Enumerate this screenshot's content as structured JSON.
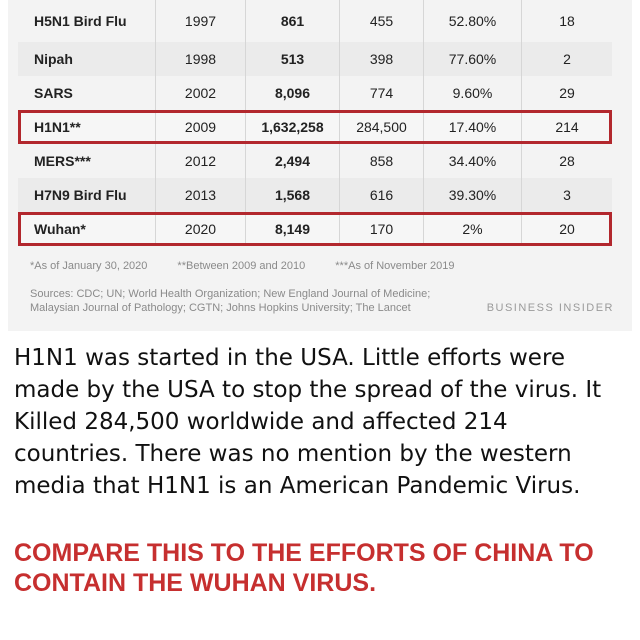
{
  "table": {
    "rows": [
      {
        "name": "H5N1 Bird Flu",
        "year": "1997",
        "cases": "861",
        "deaths": "455",
        "rate": "52.80%",
        "countries": "18",
        "highlight": false
      },
      {
        "name": "Nipah",
        "year": "1998",
        "cases": "513",
        "deaths": "398",
        "rate": "77.60%",
        "countries": "2",
        "highlight": false
      },
      {
        "name": "SARS",
        "year": "2002",
        "cases": "8,096",
        "deaths": "774",
        "rate": "9.60%",
        "countries": "29",
        "highlight": false
      },
      {
        "name": "H1N1**",
        "year": "2009",
        "cases": "1,632,258",
        "deaths": "284,500",
        "rate": "17.40%",
        "countries": "214",
        "highlight": true
      },
      {
        "name": "MERS***",
        "year": "2012",
        "cases": "2,494",
        "deaths": "858",
        "rate": "34.40%",
        "countries": "28",
        "highlight": false
      },
      {
        "name": "H7N9 Bird Flu",
        "year": "2013",
        "cases": "1,568",
        "deaths": "616",
        "rate": "39.30%",
        "countries": "3",
        "highlight": false
      },
      {
        "name": "Wuhan*",
        "year": "2020",
        "cases": "8,149",
        "deaths": "170",
        "rate": "2%",
        "countries": "20",
        "highlight": true
      }
    ]
  },
  "footnotes": {
    "note1": "*As of January 30, 2020",
    "note2": "**Between 2009 and 2010",
    "note3": "***As of November 2019"
  },
  "sources": {
    "line1": "Sources: CDC; UN; World Health Organization; New England Journal of Medicine;",
    "line2": "Malaysian Journal of Pathology; CGTN; Johns Hopkins University; The Lancet"
  },
  "brand": "BUSINESS INSIDER",
  "caption": "H1N1 was started in the USA. Little efforts were made by the USA to stop the spread of the virus. It Killed 284,500 worldwide and affected 214 countries. There was no mention by the western media that H1N1 is an American Pandemic Virus.",
  "headline": "COMPARE THIS TO THE EFFORTS OF CHINA TO CONTAIN THE WUHAN VIRUS."
}
